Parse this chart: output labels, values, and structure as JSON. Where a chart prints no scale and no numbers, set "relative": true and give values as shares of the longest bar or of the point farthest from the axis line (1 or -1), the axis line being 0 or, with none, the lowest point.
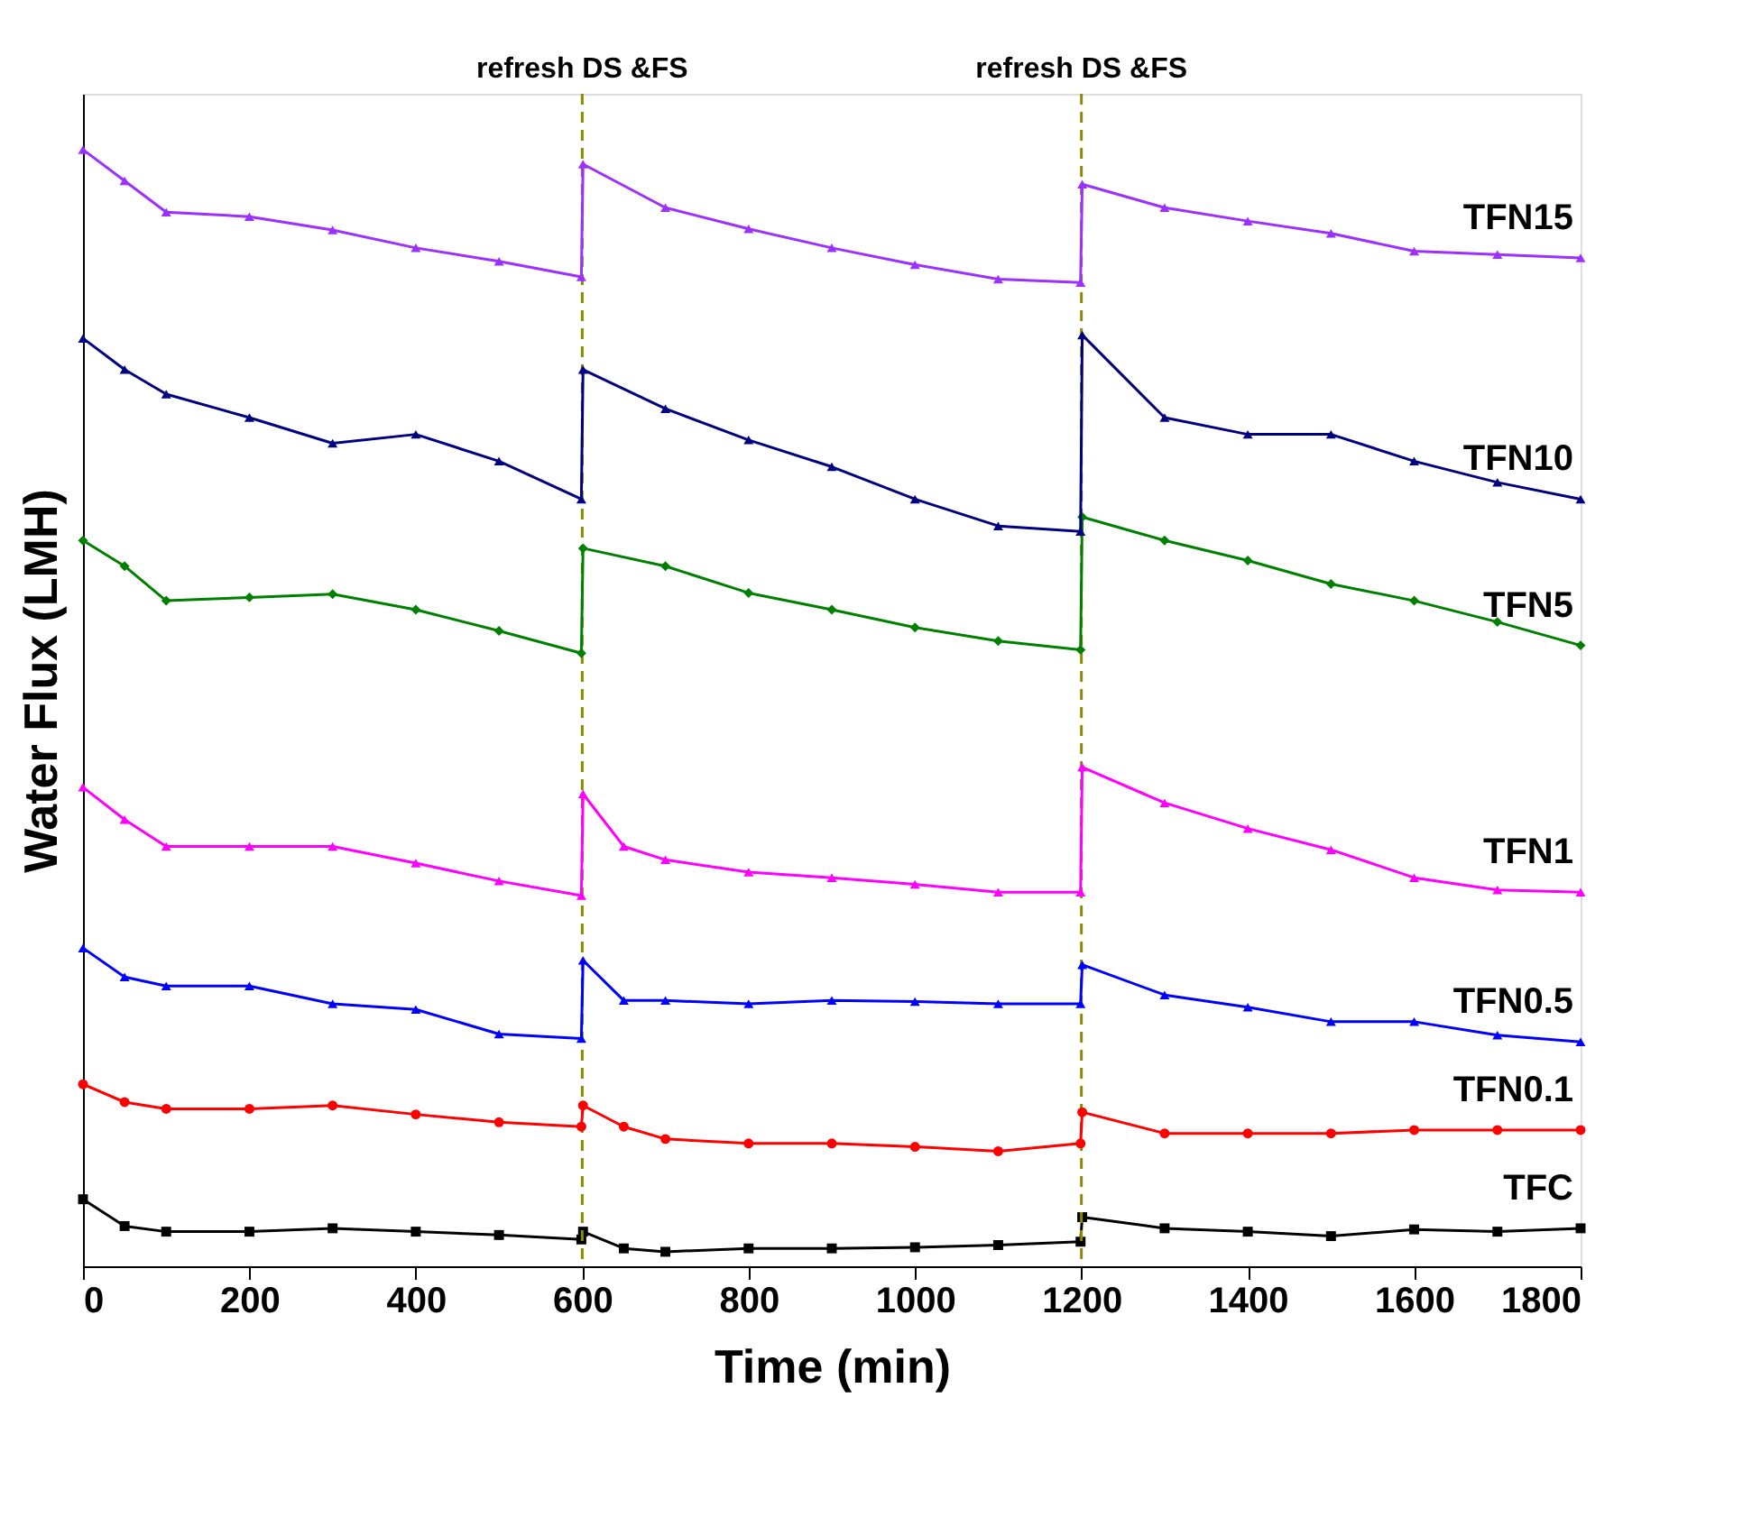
{
  "chart_data": {
    "type": "line",
    "relative": true,
    "xlabel": "Time (min)",
    "ylabel": "Water Flux (LMH)",
    "xlim": [
      0,
      1800
    ],
    "xticks": [
      0,
      200,
      400,
      600,
      800,
      1000,
      1200,
      1400,
      1600,
      1800
    ],
    "grid": false,
    "line_style": "solid",
    "series": [
      {
        "name": "TFC",
        "color": "#000000",
        "marker": "square",
        "x": [
          0,
          50,
          100,
          200,
          300,
          400,
          500,
          599,
          601,
          650,
          700,
          800,
          900,
          1000,
          1100,
          1199,
          1201,
          1300,
          1400,
          1500,
          1600,
          1700,
          1800
        ],
        "values": [
          0.06,
          0.036,
          0.031,
          0.031,
          0.034,
          0.031,
          0.028,
          0.024,
          0.031,
          0.016,
          0.013,
          0.016,
          0.016,
          0.017,
          0.019,
          0.022,
          0.044,
          0.034,
          0.031,
          0.027,
          0.033,
          0.031,
          0.034
        ]
      },
      {
        "name": "TFN0.1",
        "color": "#ff0000",
        "marker": "circle",
        "x": [
          0,
          50,
          100,
          200,
          300,
          400,
          500,
          599,
          601,
          650,
          700,
          800,
          900,
          1000,
          1100,
          1199,
          1201,
          1300,
          1400,
          1500,
          1600,
          1700,
          1800
        ],
        "values": [
          0.163,
          0.147,
          0.141,
          0.141,
          0.144,
          0.136,
          0.129,
          0.125,
          0.144,
          0.125,
          0.114,
          0.11,
          0.11,
          0.107,
          0.103,
          0.11,
          0.138,
          0.119,
          0.119,
          0.119,
          0.122,
          0.122,
          0.122
        ]
      },
      {
        "name": "TFN0.5",
        "color": "#0000ff",
        "marker": "triangle",
        "x": [
          0,
          50,
          100,
          200,
          300,
          400,
          500,
          599,
          601,
          650,
          700,
          800,
          900,
          1000,
          1100,
          1199,
          1201,
          1300,
          1400,
          1500,
          1600,
          1700,
          1800
        ],
        "values": [
          0.285,
          0.259,
          0.251,
          0.251,
          0.235,
          0.23,
          0.208,
          0.204,
          0.274,
          0.238,
          0.238,
          0.235,
          0.238,
          0.237,
          0.235,
          0.235,
          0.27,
          0.243,
          0.232,
          0.219,
          0.219,
          0.207,
          0.201
        ]
      },
      {
        "name": "TFN1",
        "color": "#ff00ff",
        "marker": "triangle",
        "x": [
          0,
          50,
          100,
          200,
          300,
          400,
          500,
          599,
          601,
          650,
          700,
          800,
          900,
          1000,
          1100,
          1199,
          1201,
          1300,
          1400,
          1500,
          1600,
          1700,
          1800
        ],
        "values": [
          0.429,
          0.4,
          0.376,
          0.376,
          0.376,
          0.361,
          0.345,
          0.332,
          0.423,
          0.376,
          0.364,
          0.353,
          0.348,
          0.342,
          0.335,
          0.335,
          0.447,
          0.415,
          0.392,
          0.373,
          0.348,
          0.337,
          0.335
        ]
      },
      {
        "name": "TFN5",
        "color": "#008000",
        "marker": "diamond",
        "x": [
          0,
          50,
          100,
          200,
          300,
          400,
          500,
          599,
          601,
          700,
          800,
          900,
          1000,
          1100,
          1199,
          1201,
          1300,
          1400,
          1500,
          1600,
          1700,
          1800
        ],
        "values": [
          0.65,
          0.627,
          0.596,
          0.599,
          0.602,
          0.588,
          0.569,
          0.549,
          0.643,
          0.627,
          0.603,
          0.588,
          0.572,
          0.56,
          0.552,
          0.671,
          0.65,
          0.632,
          0.611,
          0.596,
          0.577,
          0.556
        ]
      },
      {
        "name": "TFN10",
        "color": "#000080",
        "marker": "triangle",
        "x": [
          0,
          50,
          100,
          200,
          300,
          400,
          500,
          599,
          601,
          700,
          800,
          900,
          1000,
          1100,
          1199,
          1201,
          1300,
          1400,
          1500,
          1600,
          1700,
          1800
        ],
        "values": [
          0.831,
          0.803,
          0.781,
          0.76,
          0.737,
          0.745,
          0.721,
          0.687,
          0.803,
          0.768,
          0.74,
          0.716,
          0.687,
          0.663,
          0.658,
          0.834,
          0.76,
          0.745,
          0.745,
          0.721,
          0.702,
          0.687
        ]
      },
      {
        "name": "TFN15",
        "color": "#9b30ff",
        "marker": "triangle",
        "x": [
          0,
          50,
          100,
          200,
          300,
          400,
          500,
          599,
          601,
          700,
          800,
          900,
          1000,
          1100,
          1199,
          1201,
          1300,
          1400,
          1500,
          1600,
          1700,
          1800
        ],
        "values": [
          1.0,
          0.972,
          0.944,
          0.94,
          0.928,
          0.912,
          0.9,
          0.886,
          0.987,
          0.948,
          0.929,
          0.912,
          0.897,
          0.884,
          0.881,
          0.969,
          0.948,
          0.936,
          0.925,
          0.909,
          0.906,
          0.903
        ]
      }
    ],
    "ref_lines": [
      {
        "axis": "x",
        "value": 600,
        "label": "refresh DS &FS",
        "color": "#8b8b00",
        "line_style": "dashed"
      },
      {
        "axis": "x",
        "value": 1200,
        "label": "refresh DS &FS",
        "color": "#8b8b00",
        "line_style": "dashed"
      }
    ]
  }
}
